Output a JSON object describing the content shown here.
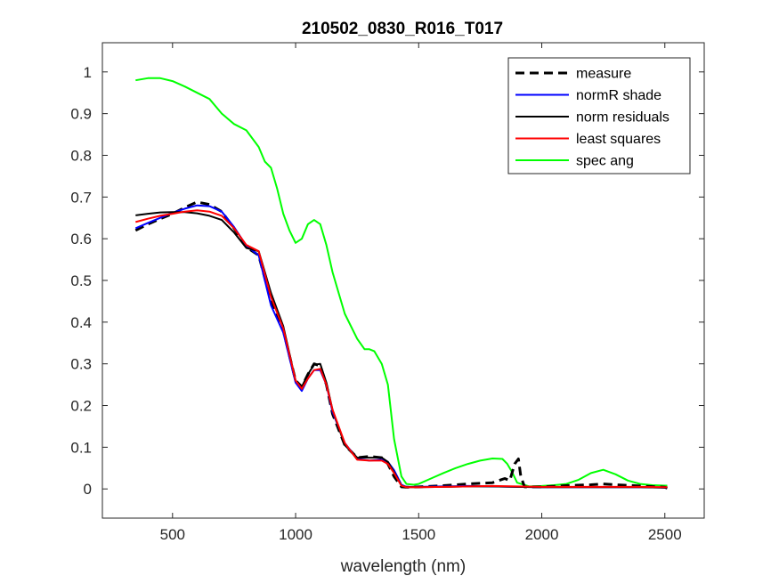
{
  "chart_data": {
    "type": "line",
    "title": "210502_0830_R016_T017",
    "xlabel": "wavelength (nm)",
    "ylabel": "",
    "xlim": [
      215,
      2660
    ],
    "ylim": [
      -0.07,
      1.07
    ],
    "xticks": [
      500,
      1000,
      1500,
      2000,
      2500
    ],
    "yticks": [
      0,
      0.1,
      0.2,
      0.3,
      0.4,
      0.5,
      0.6,
      0.7,
      0.8,
      0.9,
      1
    ],
    "grid": false,
    "legend_position": "top-right",
    "series": [
      {
        "name": "measure",
        "color": "#000000",
        "style": "dashed",
        "x": [
          350,
          400,
          450,
          500,
          550,
          600,
          650,
          700,
          750,
          800,
          850,
          900,
          950,
          1000,
          1025,
          1050,
          1075,
          1100,
          1125,
          1150,
          1200,
          1250,
          1300,
          1350,
          1375,
          1400,
          1430,
          1450,
          1500,
          1600,
          1700,
          1800,
          1850,
          1870,
          1890,
          1905,
          1915,
          1930,
          2000,
          2100,
          2200,
          2250,
          2300,
          2400,
          2500,
          2510
        ],
        "y": [
          0.62,
          0.635,
          0.648,
          0.66,
          0.675,
          0.688,
          0.682,
          0.665,
          0.625,
          0.58,
          0.56,
          0.45,
          0.38,
          0.26,
          0.245,
          0.275,
          0.3,
          0.295,
          0.25,
          0.18,
          0.105,
          0.075,
          0.078,
          0.075,
          0.06,
          0.03,
          0.005,
          0.004,
          0.005,
          0.008,
          0.012,
          0.015,
          0.025,
          0.02,
          0.06,
          0.072,
          0.03,
          0.005,
          0.005,
          0.008,
          0.01,
          0.012,
          0.01,
          0.007,
          0.004,
          0.002
        ]
      },
      {
        "name": "normR shade",
        "color": "#0000ff",
        "style": "solid",
        "x": [
          350,
          400,
          450,
          500,
          550,
          600,
          650,
          700,
          750,
          800,
          850,
          900,
          950,
          1000,
          1025,
          1050,
          1075,
          1100,
          1125,
          1150,
          1200,
          1250,
          1300,
          1350,
          1375,
          1400,
          1430,
          1450,
          1500,
          1600,
          1700,
          1800,
          1900,
          2000,
          2100,
          2200,
          2300,
          2400,
          2500,
          2510
        ],
        "y": [
          0.625,
          0.638,
          0.65,
          0.662,
          0.672,
          0.68,
          0.678,
          0.665,
          0.628,
          0.583,
          0.56,
          0.44,
          0.375,
          0.255,
          0.235,
          0.265,
          0.285,
          0.285,
          0.25,
          0.185,
          0.11,
          0.072,
          0.068,
          0.07,
          0.065,
          0.045,
          0.01,
          0.005,
          0.005,
          0.006,
          0.007,
          0.006,
          0.005,
          0.004,
          0.004,
          0.004,
          0.004,
          0.004,
          0.003,
          0.003
        ]
      },
      {
        "name": "norm residuals",
        "color": "#000000",
        "style": "solid",
        "x": [
          350,
          400,
          450,
          500,
          550,
          600,
          650,
          700,
          750,
          800,
          850,
          900,
          950,
          1000,
          1025,
          1050,
          1075,
          1100,
          1125,
          1150,
          1200,
          1250,
          1300,
          1350,
          1375,
          1400,
          1430,
          1450,
          1500,
          1600,
          1700,
          1800,
          1900,
          2000,
          2100,
          2200,
          2300,
          2400,
          2500,
          2510
        ],
        "y": [
          0.656,
          0.66,
          0.663,
          0.664,
          0.664,
          0.661,
          0.655,
          0.645,
          0.615,
          0.578,
          0.57,
          0.47,
          0.39,
          0.26,
          0.245,
          0.275,
          0.298,
          0.3,
          0.255,
          0.19,
          0.105,
          0.075,
          0.075,
          0.075,
          0.065,
          0.04,
          0.008,
          0.004,
          0.004,
          0.005,
          0.006,
          0.006,
          0.005,
          0.004,
          0.004,
          0.004,
          0.004,
          0.004,
          0.003,
          0.003
        ]
      },
      {
        "name": "least squares",
        "color": "#ff0000",
        "style": "solid",
        "x": [
          350,
          400,
          450,
          500,
          550,
          600,
          650,
          700,
          750,
          800,
          850,
          900,
          950,
          1000,
          1025,
          1050,
          1075,
          1100,
          1125,
          1150,
          1200,
          1250,
          1300,
          1350,
          1375,
          1400,
          1430,
          1450,
          1500,
          1600,
          1700,
          1800,
          1900,
          2000,
          2100,
          2200,
          2300,
          2400,
          2500,
          2510
        ],
        "y": [
          0.64,
          0.648,
          0.655,
          0.66,
          0.665,
          0.668,
          0.665,
          0.655,
          0.625,
          0.585,
          0.57,
          0.46,
          0.385,
          0.26,
          0.24,
          0.265,
          0.285,
          0.288,
          0.25,
          0.19,
          0.11,
          0.07,
          0.068,
          0.068,
          0.06,
          0.038,
          0.008,
          0.004,
          0.004,
          0.005,
          0.006,
          0.007,
          0.006,
          0.005,
          0.005,
          0.005,
          0.005,
          0.005,
          0.004,
          0.004
        ]
      },
      {
        "name": "spec ang",
        "color": "#00ff00",
        "style": "solid",
        "x": [
          350,
          400,
          450,
          500,
          550,
          600,
          650,
          700,
          750,
          800,
          850,
          875,
          900,
          925,
          950,
          975,
          1000,
          1025,
          1050,
          1075,
          1100,
          1125,
          1150,
          1175,
          1200,
          1250,
          1280,
          1300,
          1320,
          1350,
          1375,
          1400,
          1430,
          1450,
          1480,
          1500,
          1550,
          1600,
          1650,
          1700,
          1750,
          1800,
          1840,
          1860,
          1880,
          1900,
          1950,
          2000,
          2050,
          2100,
          2150,
          2200,
          2250,
          2300,
          2350,
          2400,
          2450,
          2500,
          2510
        ],
        "y": [
          0.98,
          0.985,
          0.985,
          0.978,
          0.965,
          0.95,
          0.935,
          0.9,
          0.875,
          0.86,
          0.82,
          0.785,
          0.77,
          0.72,
          0.66,
          0.62,
          0.59,
          0.6,
          0.635,
          0.645,
          0.635,
          0.585,
          0.52,
          0.47,
          0.42,
          0.36,
          0.335,
          0.335,
          0.33,
          0.3,
          0.25,
          0.12,
          0.03,
          0.012,
          0.01,
          0.012,
          0.025,
          0.038,
          0.05,
          0.06,
          0.068,
          0.073,
          0.072,
          0.06,
          0.04,
          0.015,
          0.006,
          0.007,
          0.009,
          0.012,
          0.022,
          0.038,
          0.046,
          0.035,
          0.02,
          0.012,
          0.009,
          0.008,
          0.008
        ]
      }
    ]
  }
}
